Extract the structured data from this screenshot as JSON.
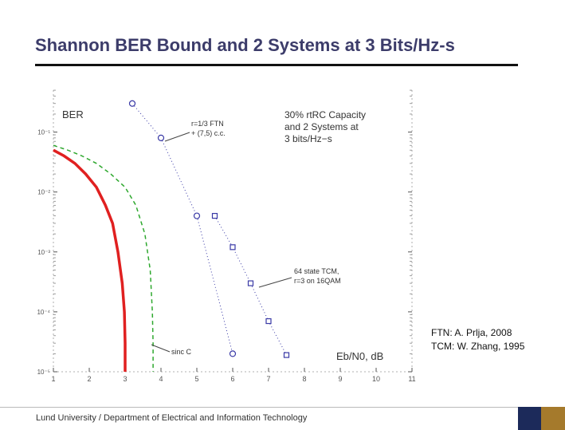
{
  "slide": {
    "title": "Shannon BER Bound and 2 Systems at 3 Bits/Hz-s",
    "citations": [
      "FTN: A. Prlja, 2008",
      "TCM: W. Zhang, 1995"
    ],
    "footer": "Lund University / Department of Electrical and Information Technology",
    "colors": {
      "title": "#3c3c6a",
      "logo_navy": "#1c2a5a",
      "logo_gold": "#a57a2c"
    }
  },
  "chart_data": {
    "type": "line",
    "title": "",
    "xlabel": "Eb/N0, dB",
    "ylabel": "BER",
    "xlim": [
      1,
      11
    ],
    "ylim_log10": [
      -5,
      -0.3
    ],
    "y_scale": "log",
    "grid": false,
    "x_ticks": [
      "1",
      "2",
      "3",
      "4",
      "5",
      "6",
      "7",
      "8",
      "9",
      "10",
      "11"
    ],
    "y_ticks": [
      {
        "label": "10⁻¹",
        "value": 0.1
      },
      {
        "label": "10⁻²",
        "value": 0.01
      },
      {
        "label": "10⁻³",
        "value": 0.001
      },
      {
        "label": "10⁻⁴",
        "value": 0.0001
      },
      {
        "label": "10⁻⁵",
        "value": 1e-05
      }
    ],
    "annotations": {
      "capacity_text": [
        "30% rtRC Capacity",
        "and 2 Systems at",
        "3 bits/Hz−s"
      ],
      "ftn_label": [
        "r=1/3 FTN",
        "+ (7,5) c.c."
      ],
      "tcm_label": [
        "64 state TCM,",
        "r=3 on 16QAM"
      ],
      "sinc_label": "sinc C"
    },
    "series": [
      {
        "color": "#e02020",
        "style": "solid",
        "marker": "none",
        "x": [
          1.0,
          1.3,
          1.6,
          1.9,
          2.2,
          2.45,
          2.65,
          2.8,
          2.92,
          2.98,
          3.0,
          3.0
        ],
        "y": [
          0.05,
          0.04,
          0.03,
          0.02,
          0.012,
          0.006,
          0.003,
          0.001,
          0.0003,
          0.0001,
          3e-05,
          1e-05
        ]
      },
      {
        "color": "#2ea82e",
        "style": "dashed",
        "marker": "none",
        "x": [
          1.0,
          1.4,
          1.8,
          2.2,
          2.6,
          3.0,
          3.3,
          3.55,
          3.7,
          3.76,
          3.78,
          3.78
        ],
        "y": [
          0.06,
          0.05,
          0.04,
          0.03,
          0.02,
          0.012,
          0.006,
          0.002,
          0.0005,
          0.0001,
          3e-05,
          1e-05
        ]
      },
      {
        "color": "#3a3aa6",
        "style": "dotted",
        "marker": "circle",
        "x": [
          3.2,
          4.0,
          5.0,
          6.0
        ],
        "y": [
          0.3,
          0.08,
          0.004,
          2e-05
        ]
      },
      {
        "color": "#3a3aa6",
        "style": "dotted",
        "marker": "square",
        "x": [
          5.5,
          6.0,
          6.5,
          7.0,
          7.5
        ],
        "y": [
          0.004,
          0.0012,
          0.0003,
          7e-05,
          1.9e-05
        ]
      }
    ]
  }
}
